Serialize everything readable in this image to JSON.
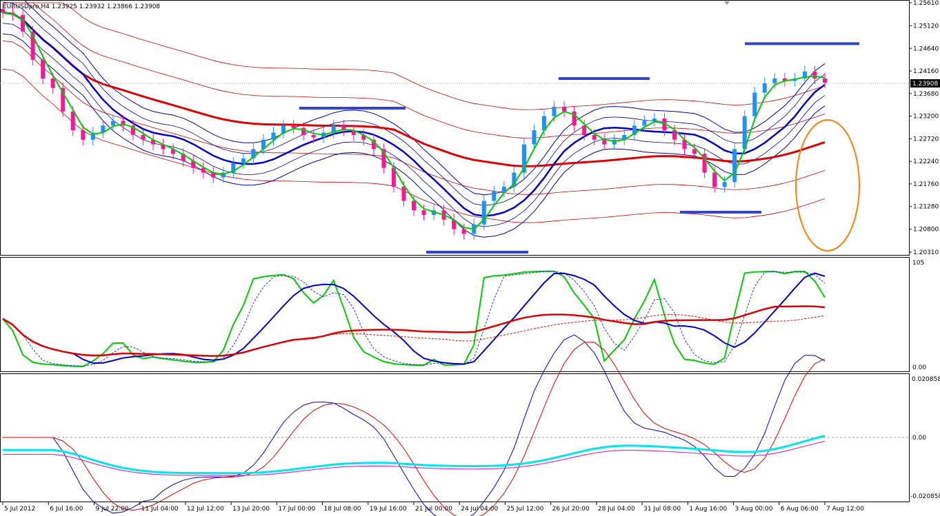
{
  "title": "EURUSDpro,H4  1.23925 1.23932 1.23866 1.23908",
  "current_price": "1.23908",
  "colors": {
    "bull_candle": "#1e90ff",
    "bear_candle": "#ff1493",
    "ma_fast": "#00cc00",
    "ma_mid": "#0000cc",
    "ma_slow": "#dd0000",
    "bands": "#0000aa",
    "envelope": "#cc0000",
    "level_lines": "#3344cc",
    "highlight_ellipse": "#ff7f00",
    "cyan": "#00e5ee",
    "magenta": "#cc33cc"
  },
  "price_axis": [
    "1.25610",
    "1.25120",
    "1.24640",
    "1.24160",
    "1.23680",
    "1.23200",
    "1.22720",
    "1.22240",
    "1.21760",
    "1.21280",
    "1.20800",
    "1.20310"
  ],
  "stoch_axis": [
    "105",
    "0.00"
  ],
  "macd_axis": [
    "0.020858",
    "0.00",
    "-0.020858"
  ],
  "time_axis": [
    "5 Jul 2012",
    "6 Jul 16:00",
    "9 Jul 22:00",
    "11 Jul 04:00",
    "12 Jul 12:00",
    "13 Jul 20:00",
    "17 Jul 00:00",
    "18 Jul 08:00",
    "19 Jul 16:00",
    "21 Jul 00:00",
    "24 Jul 04:00",
    "25 Jul 12:00",
    "26 Jul 20:00",
    "28 Jul 04:00",
    "31 Jul 08:00",
    "1 Aug 16:00",
    "3 Aug 00:00",
    "6 Aug 06:00",
    "7 Aug 12:00"
  ],
  "chart_data": {
    "type": "candlestick",
    "symbol": "EURUSDpro",
    "timeframe": "H4",
    "ylim": [
      1.2031,
      1.2561
    ],
    "close_series": [
      1.254,
      1.2535,
      1.25,
      1.244,
      1.24,
      1.238,
      1.233,
      1.229,
      1.227,
      1.2285,
      1.23,
      1.231,
      1.23,
      1.228,
      1.227,
      1.226,
      1.225,
      1.224,
      1.2225,
      1.221,
      1.22,
      1.219,
      1.22,
      1.222,
      1.223,
      1.225,
      1.227,
      1.2285,
      1.23,
      1.2295,
      1.228,
      1.2275,
      1.2285,
      1.23,
      1.229,
      1.228,
      1.227,
      1.225,
      1.221,
      1.217,
      1.214,
      1.212,
      1.211,
      1.212,
      1.21,
      1.208,
      1.207,
      1.209,
      1.214,
      1.216,
      1.217,
      1.22,
      1.226,
      1.229,
      1.232,
      1.234,
      1.233,
      1.23,
      1.228,
      1.227,
      1.226,
      1.227,
      1.228,
      1.23,
      1.231,
      1.2315,
      1.229,
      1.227,
      1.225,
      1.224,
      1.22,
      1.217,
      1.218,
      1.225,
      1.232,
      1.237,
      1.239,
      1.24,
      1.2395,
      1.24,
      1.2415,
      1.24,
      1.2391
    ],
    "level_lines": [
      1.2337,
      1.24,
      1.2474,
      1.2116,
      1.2031
    ],
    "subcharts": [
      {
        "name": "stochastic",
        "ylim": [
          0,
          105
        ]
      },
      {
        "name": "macd",
        "ylim": [
          -0.020858,
          0.020858
        ]
      }
    ]
  }
}
